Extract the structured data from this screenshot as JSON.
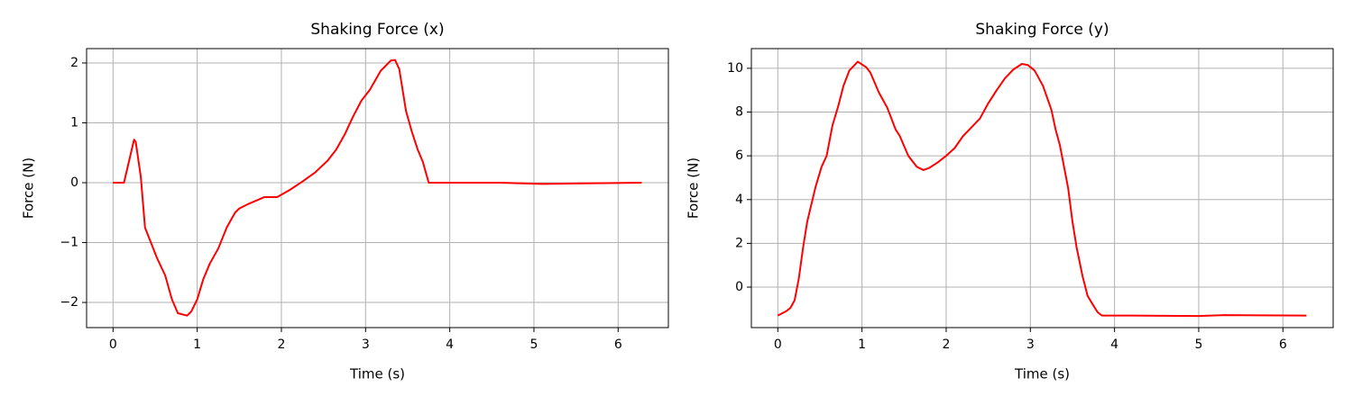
{
  "chart_data": [
    {
      "type": "line",
      "title": "Shaking Force (x)",
      "xlabel": "Time (s)",
      "ylabel": "Force (N)",
      "color": "#ff0000",
      "grid": true,
      "x": [
        0,
        0.13,
        0.25,
        0.27,
        0.33,
        0.38,
        0.45,
        0.52,
        0.62,
        0.7,
        0.77,
        0.88,
        0.93,
        1.0,
        1.07,
        1.15,
        1.25,
        1.35,
        1.45,
        1.5,
        1.6,
        1.8,
        1.95,
        2.1,
        2.25,
        2.4,
        2.55,
        2.65,
        2.75,
        2.85,
        2.95,
        3.05,
        3.18,
        3.3,
        3.35,
        3.4,
        3.48,
        3.55,
        3.62,
        3.68,
        3.75,
        4.6,
        5.1,
        6.28
      ],
      "values": [
        0,
        0,
        0.72,
        0.68,
        0.1,
        -0.75,
        -1.0,
        -1.25,
        -1.55,
        -1.95,
        -2.18,
        -2.22,
        -2.15,
        -1.95,
        -1.62,
        -1.35,
        -1.1,
        -0.75,
        -0.5,
        -0.43,
        -0.36,
        -0.24,
        -0.24,
        -0.12,
        0.02,
        0.17,
        0.37,
        0.55,
        0.8,
        1.1,
        1.37,
        1.55,
        1.87,
        2.04,
        2.05,
        1.9,
        1.2,
        0.85,
        0.55,
        0.35,
        0,
        0,
        -0.02,
        0
      ],
      "xlim": [
        -0.314,
        6.597
      ],
      "xticks": [
        0,
        1,
        2,
        3,
        4,
        5,
        6
      ],
      "ylim": [
        -2.42,
        2.24
      ],
      "yticks": [
        {
          "value": -2,
          "label": "−2"
        },
        {
          "value": -1,
          "label": "−1"
        },
        0,
        1,
        2
      ]
    },
    {
      "type": "line",
      "title": "Shaking Force (y)",
      "xlabel": "Time (s)",
      "ylabel": "Force (N)",
      "color": "#ff0000",
      "grid": true,
      "x": [
        0,
        0.1,
        0.15,
        0.2,
        0.25,
        0.3,
        0.35,
        0.45,
        0.52,
        0.58,
        0.65,
        0.72,
        0.78,
        0.85,
        0.95,
        1.05,
        1.1,
        1.2,
        1.3,
        1.4,
        1.45,
        1.55,
        1.65,
        1.73,
        1.8,
        1.9,
        2.0,
        2.1,
        2.2,
        2.3,
        2.4,
        2.5,
        2.6,
        2.7,
        2.8,
        2.9,
        2.97,
        3.05,
        3.15,
        3.25,
        3.3,
        3.35,
        3.45,
        3.5,
        3.55,
        3.62,
        3.68,
        3.75,
        3.8,
        3.85,
        4.2,
        5.0,
        5.3,
        6.28
      ],
      "values": [
        -1.3,
        -1.1,
        -0.95,
        -0.6,
        0.4,
        1.8,
        3.0,
        4.6,
        5.5,
        6.0,
        7.4,
        8.3,
        9.2,
        9.9,
        10.3,
        10.05,
        9.8,
        8.9,
        8.2,
        7.2,
        6.9,
        6.0,
        5.5,
        5.35,
        5.45,
        5.7,
        6.0,
        6.35,
        6.9,
        7.3,
        7.7,
        8.4,
        9.0,
        9.55,
        9.95,
        10.2,
        10.15,
        9.9,
        9.2,
        8.1,
        7.2,
        6.5,
        4.5,
        3.0,
        1.8,
        0.5,
        -0.4,
        -0.85,
        -1.15,
        -1.3,
        -1.3,
        -1.32,
        -1.28,
        -1.3
      ],
      "xlim": [
        -0.314,
        6.597
      ],
      "xticks": [
        0,
        1,
        2,
        3,
        4,
        5,
        6
      ],
      "ylim": [
        -1.85,
        10.9
      ],
      "yticks": [
        0,
        2,
        4,
        6,
        8,
        10
      ]
    }
  ]
}
